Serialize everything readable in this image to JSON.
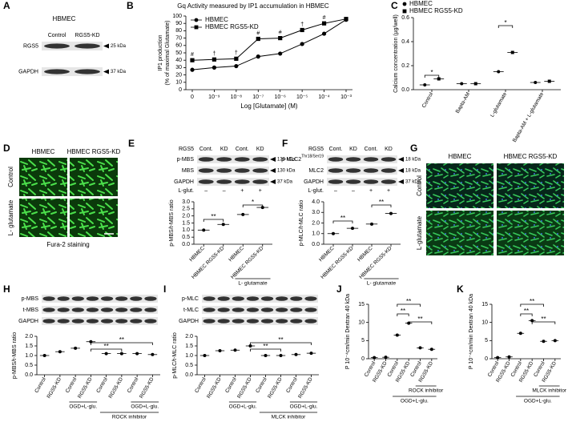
{
  "panels": {
    "A": {
      "letter": "A",
      "blot": {
        "title": "HBMEC",
        "lanes": [
          "Control",
          "RGS5-KD"
        ],
        "rows": [
          "RGS5",
          "GAPDH"
        ],
        "sizes": [
          "25 kDa",
          "37 kDa"
        ]
      }
    },
    "D": {
      "letter": "D",
      "columns": [
        "HBMEC",
        "HBMEC RGS5-KD"
      ],
      "rows": [
        "Control",
        "L- glutamate"
      ],
      "caption": "Fura-2 staining"
    },
    "G": {
      "letter": "G",
      "columns": [
        "HBMEC",
        "HBMEC RGS5-KD"
      ],
      "rows": [
        "Control",
        "L-glutamate"
      ]
    }
  },
  "chart_data": [
    {
      "panel": "B",
      "type": "line",
      "title": "Gq Activity measured by IP1 accumulation in HBMEC",
      "ylabel": [
        "IP1 production",
        "(% of maximal Glutamate)"
      ],
      "xlabel": "Log [Glutamate] (M)",
      "categories": [
        "0",
        "10⁻⁹",
        "10⁻⁸",
        "10⁻⁷",
        "10⁻⁶",
        "10⁻⁵",
        "10⁻⁴",
        "10⁻³"
      ],
      "series": [
        {
          "name": "HBMEC",
          "color": "#000000",
          "marker": "circle",
          "values": [
            27,
            30,
            32,
            45,
            49,
            62,
            76,
            95
          ]
        },
        {
          "name": "HBMEC RGS5-KD",
          "color": "#000000",
          "marker": "square",
          "values": [
            40,
            41,
            42,
            69,
            70,
            81,
            90,
            96
          ]
        }
      ],
      "annotations": [
        "#",
        "†",
        "†",
        "#",
        "#",
        "†",
        "#",
        null
      ],
      "ylim": [
        0,
        100
      ],
      "yticks": [
        0,
        10,
        20,
        30,
        40,
        50,
        60,
        70,
        80,
        90,
        100
      ]
    },
    {
      "panel": "C",
      "type": "dot",
      "ylabel": "Calcium concentration (μg/well)",
      "categories": [
        "Control",
        "Bapta-AM",
        "L-glutamate",
        "Bapta-AM + L-glutamate"
      ],
      "series": [
        {
          "name": "HBMEC",
          "color": "#000000",
          "marker": "circle",
          "values": [
            0.04,
            0.05,
            0.15,
            0.06
          ]
        },
        {
          "name": "HBMEC RGS5-KD",
          "color": "#000000",
          "marker": "square",
          "values": [
            0.09,
            0.05,
            0.31,
            0.07
          ]
        }
      ],
      "ylim": [
        0,
        0.6
      ],
      "yticks": [
        {
          "value": 0,
          "label": "0.0"
        },
        0.2,
        0.4,
        0.6
      ],
      "significance": [
        "*",
        "*"
      ]
    },
    {
      "panel": "E",
      "type": "dot",
      "blot": {
        "label": "RGS5",
        "lanes": [
          "Cont.",
          "KD",
          "Cont.",
          "KD"
        ],
        "rows": [
          "p-MBS",
          "MBS",
          "GAPDH"
        ],
        "sizes": [
          "130 kDa",
          "130 kDa",
          "37 kDa"
        ],
        "treatment_label": "L-glut.",
        "treatment": [
          "–",
          "–",
          "+",
          "+"
        ]
      },
      "ylabel": "p-MBS/t-MBS ratio",
      "categories": [
        "HBMEC",
        "HBMEC RGS5-KD",
        "HBMEC",
        "HBMEC RGS5-KD"
      ],
      "values": [
        1.0,
        1.4,
        2.1,
        2.6
      ],
      "color": "#000000",
      "ylim": [
        0,
        3
      ],
      "yticks": [
        {
          "value": 0,
          "label": "0.0"
        },
        0.5,
        {
          "value": 1,
          "label": "1.0"
        },
        1.5,
        {
          "value": 2,
          "label": "2.0"
        },
        2.5,
        {
          "value": 3,
          "label": "3.0"
        }
      ],
      "significance": [
        "**",
        "*"
      ],
      "groups": [
        "L- glutamate"
      ]
    },
    {
      "panel": "F",
      "type": "dot",
      "blot": {
        "label": "RGS5",
        "lanes": [
          "Cont.",
          "KD",
          "Cont.",
          "KD"
        ],
        "rows": [
          "p-MLC2",
          "MLC2",
          "GAPDH"
        ],
        "rows_sup": [
          "Thr18/Ser19",
          null,
          null
        ],
        "sizes": [
          "18 kDa",
          "18 kDa",
          "37 kDa"
        ],
        "treatment_label": "L-glut.",
        "treatment": [
          "–",
          "–",
          "+",
          "+"
        ]
      },
      "ylabel": "p-MLC/t-MLC ratio",
      "categories": [
        "HBMEC",
        "HBMEC RGS5-KD",
        "HBMEC",
        "HBMEC RGS5-KD"
      ],
      "values": [
        1.0,
        1.5,
        1.9,
        2.9
      ],
      "color": "#000000",
      "ylim": [
        0,
        4
      ],
      "yticks": [
        {
          "value": 0,
          "label": "0.0"
        },
        {
          "value": 1,
          "label": "1.0"
        },
        {
          "value": 2,
          "label": "2.0"
        },
        {
          "value": 3,
          "label": "3.0"
        },
        {
          "value": 4,
          "label": "4.0"
        }
      ],
      "significance": [
        "**",
        "**"
      ],
      "groups": [
        "L- glutamate"
      ]
    },
    {
      "panel": "H",
      "type": "dot",
      "blot": {
        "rows": [
          "p-MBS",
          "t-MBS",
          "GAPDH"
        ]
      },
      "ylabel": "p-MBS/t-MBS ratio",
      "categories": [
        "Control",
        "RGS5-KD",
        "Control",
        "RGS5-KD",
        "Control",
        "RGS5-KD",
        "Control",
        "RGS5-KD"
      ],
      "values": [
        1.0,
        1.2,
        1.38,
        1.72,
        1.1,
        1.1,
        1.1,
        1.05
      ],
      "color": "#000000",
      "ylim": [
        0,
        2
      ],
      "yticks": [
        {
          "value": 0,
          "label": "0.0"
        },
        0.5,
        {
          "value": 1,
          "label": "1.0"
        },
        1.5,
        {
          "value": 2,
          "label": "2.0"
        }
      ],
      "significance": [
        "**",
        "**"
      ],
      "groups": [
        "OGD+L-glu.",
        "OGD+L-glu.",
        "ROCK inhibitor"
      ]
    },
    {
      "panel": "I",
      "type": "dot",
      "blot": {
        "rows": [
          "p-MLC",
          "t-MLC",
          "GAPDH"
        ]
      },
      "ylabel": "p-MLC/t-MLC ratio",
      "categories": [
        "Control",
        "RGS5-KD",
        "Control",
        "RGS5-KD",
        "Control",
        "RGS5-KD",
        "Control",
        "RGS5-KD"
      ],
      "values": [
        1.0,
        1.25,
        1.28,
        1.5,
        1.0,
        1.0,
        1.05,
        1.12
      ],
      "color": "#000000",
      "ylim": [
        0,
        2
      ],
      "yticks": [
        {
          "value": 0,
          "label": "0.0"
        },
        0.5,
        {
          "value": 1,
          "label": "1.0"
        },
        1.5,
        {
          "value": 2,
          "label": "2.0"
        }
      ],
      "significance": [
        "**",
        "**"
      ],
      "groups": [
        "OGD+L-glu.",
        "OGD+L-glu.",
        "MLCK inhibitor"
      ]
    },
    {
      "panel": "J",
      "type": "dot",
      "ylabel": "P 10⁻⁴cm/min Dextran 40 kDa",
      "categories": [
        "Control",
        "RGS5-KD",
        "Control",
        "RGS5-KD",
        "Control",
        "RGS5-KD"
      ],
      "values": [
        0.3,
        0.4,
        6.5,
        9.8,
        3.0,
        2.6
      ],
      "color": "#000000",
      "ylim": [
        0,
        15
      ],
      "yticks": [
        0,
        5,
        10,
        15
      ],
      "significance": [
        "**",
        "**",
        "**"
      ],
      "groups": [
        "ROCK inhibitor",
        "OGD+L-glu."
      ]
    },
    {
      "panel": "K",
      "type": "dot",
      "ylabel": "P 10⁻⁴cm/min Dextran 40 kDa",
      "categories": [
        "Control",
        "RGS5-KD",
        "Control",
        "RGS5-KD",
        "Control",
        "RGS5-KD"
      ],
      "values": [
        0.3,
        0.5,
        7.0,
        10.5,
        4.8,
        5.0
      ],
      "color": "#000000",
      "ylim": [
        0,
        15
      ],
      "yticks": [
        0,
        5,
        10,
        15
      ],
      "significance": [
        "**",
        "**",
        "**"
      ],
      "groups": [
        "MLCK inhibitor",
        "OGD+L-glu."
      ]
    }
  ]
}
